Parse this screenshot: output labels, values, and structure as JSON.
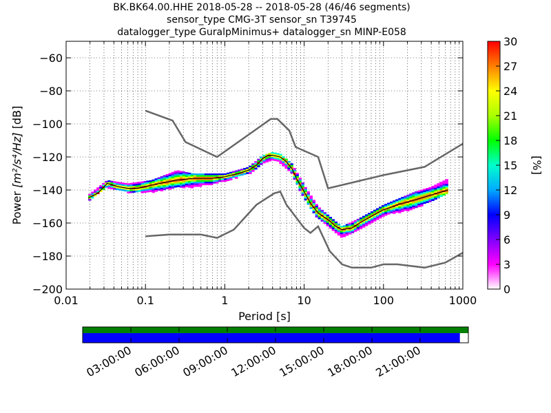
{
  "title": {
    "line1": "BK.BK64.00.HHE   2018-05-28 -- 2018-05-28  (46/46 segments)",
    "line2": "sensor_type CMG-3T sensor_sn T39745",
    "line3": "datalogger_type GuralpMinimus+ datalogger_sn MINP-E058"
  },
  "chart_data": {
    "type": "heatmap",
    "xlabel": "Period [s]",
    "ylabel_prefix": "Power ",
    "ylabel_units": "[m²/s⁴/Hz]",
    "ylabel_suffix": " [dB]",
    "x_scale": "log",
    "xlim": [
      0.01,
      1000
    ],
    "ylim": [
      -200,
      -50
    ],
    "x_ticks": [
      {
        "value": 0.01,
        "label": "0.01"
      },
      {
        "value": 0.1,
        "label": "0.1"
      },
      {
        "value": 1,
        "label": "1"
      },
      {
        "value": 10,
        "label": "10"
      },
      {
        "value": 100,
        "label": "100"
      },
      {
        "value": 1000,
        "label": "1000"
      }
    ],
    "y_ticks": [
      {
        "value": -60,
        "label": "−60"
      },
      {
        "value": -80,
        "label": "−80"
      },
      {
        "value": -100,
        "label": "−100"
      },
      {
        "value": -120,
        "label": "−120"
      },
      {
        "value": -140,
        "label": "−140"
      },
      {
        "value": -160,
        "label": "−160"
      },
      {
        "value": -180,
        "label": "−180"
      },
      {
        "value": -200,
        "label": "−200"
      }
    ],
    "grid": "dotted",
    "colorbar": {
      "label": "[%]",
      "range": [
        0,
        30
      ],
      "ticks": [
        "0",
        "3",
        "6",
        "9",
        "12",
        "15",
        "18",
        "21",
        "24",
        "27",
        "30"
      ],
      "colormap": "pqlx-rainbow"
    },
    "noise_model_high": [
      [
        0.1,
        -92
      ],
      [
        0.22,
        -98
      ],
      [
        0.32,
        -111
      ],
      [
        0.8,
        -120
      ],
      [
        3.8,
        -97
      ],
      [
        4.6,
        -97
      ],
      [
        6.5,
        -104
      ],
      [
        7.8,
        -114
      ],
      [
        15,
        -120
      ],
      [
        20,
        -139
      ],
      [
        100,
        -131
      ],
      [
        330,
        -126
      ],
      [
        1000,
        -112
      ]
    ],
    "noise_model_low": [
      [
        0.1,
        -168
      ],
      [
        0.2,
        -167
      ],
      [
        0.5,
        -167
      ],
      [
        0.8,
        -169
      ],
      [
        1.3,
        -164
      ],
      [
        2.5,
        -149
      ],
      [
        4.2,
        -142
      ],
      [
        5,
        -141
      ],
      [
        6,
        -149
      ],
      [
        10,
        -163
      ],
      [
        12,
        -166
      ],
      [
        15,
        -162
      ],
      [
        21,
        -177
      ],
      [
        30,
        -185
      ],
      [
        40,
        -187
      ],
      [
        70,
        -187
      ],
      [
        100,
        -185
      ],
      [
        150,
        -185
      ],
      [
        330,
        -187
      ],
      [
        600,
        -184
      ],
      [
        1000,
        -178
      ]
    ],
    "mode_line": [
      [
        0.019,
        -145
      ],
      [
        0.025,
        -142
      ],
      [
        0.033,
        -136
      ],
      [
        0.045,
        -138
      ],
      [
        0.06,
        -139
      ],
      [
        0.08,
        -139
      ],
      [
        0.12,
        -137
      ],
      [
        0.25,
        -134
      ],
      [
        0.4,
        -133
      ],
      [
        0.7,
        -133
      ],
      [
        1,
        -132
      ],
      [
        1.5,
        -130
      ],
      [
        2,
        -128
      ],
      [
        2.5,
        -125
      ],
      [
        3,
        -121
      ],
      [
        3.5,
        -119
      ],
      [
        4,
        -119
      ],
      [
        5,
        -120
      ],
      [
        6,
        -123
      ],
      [
        7,
        -127
      ],
      [
        8,
        -133
      ],
      [
        10,
        -141
      ],
      [
        12,
        -148
      ],
      [
        15,
        -154
      ],
      [
        20,
        -158
      ],
      [
        25,
        -162
      ],
      [
        30,
        -164
      ],
      [
        40,
        -163
      ],
      [
        50,
        -160
      ],
      [
        70,
        -156
      ],
      [
        100,
        -152
      ],
      [
        150,
        -149
      ],
      [
        250,
        -146
      ],
      [
        400,
        -143
      ],
      [
        650,
        -140
      ]
    ],
    "spread_upper": [
      [
        0.019,
        -143
      ],
      [
        0.033,
        -134
      ],
      [
        0.06,
        -136
      ],
      [
        0.12,
        -134
      ],
      [
        0.25,
        -128
      ],
      [
        0.4,
        -130
      ],
      [
        0.7,
        -130
      ],
      [
        1,
        -130
      ],
      [
        2,
        -126
      ],
      [
        3,
        -119
      ],
      [
        4,
        -117
      ],
      [
        5,
        -118
      ],
      [
        7,
        -124
      ],
      [
        10,
        -137
      ],
      [
        15,
        -150
      ],
      [
        25,
        -159
      ],
      [
        30,
        -162
      ],
      [
        50,
        -157
      ],
      [
        100,
        -149
      ],
      [
        250,
        -141
      ],
      [
        400,
        -138
      ],
      [
        650,
        -133
      ]
    ],
    "spread_lower": [
      [
        0.019,
        -146
      ],
      [
        0.033,
        -138
      ],
      [
        0.06,
        -141
      ],
      [
        0.12,
        -141
      ],
      [
        0.25,
        -138
      ],
      [
        0.4,
        -138
      ],
      [
        0.7,
        -136
      ],
      [
        1,
        -134
      ],
      [
        2,
        -130
      ],
      [
        3,
        -124
      ],
      [
        4,
        -122
      ],
      [
        5,
        -123
      ],
      [
        7,
        -130
      ],
      [
        10,
        -145
      ],
      [
        15,
        -157
      ],
      [
        25,
        -165
      ],
      [
        30,
        -168
      ],
      [
        50,
        -163
      ],
      [
        100,
        -155
      ],
      [
        250,
        -151
      ],
      [
        400,
        -146
      ],
      [
        650,
        -142
      ]
    ],
    "timeline": {
      "data_bar_color": "#008000",
      "coverage_bar_color": "#0000ff",
      "coverage_fraction": 0.978,
      "ticks": [
        "03:00:00",
        "06:00:00",
        "09:00:00",
        "12:00:00",
        "15:00:00",
        "18:00:00",
        "21:00:00"
      ]
    }
  }
}
